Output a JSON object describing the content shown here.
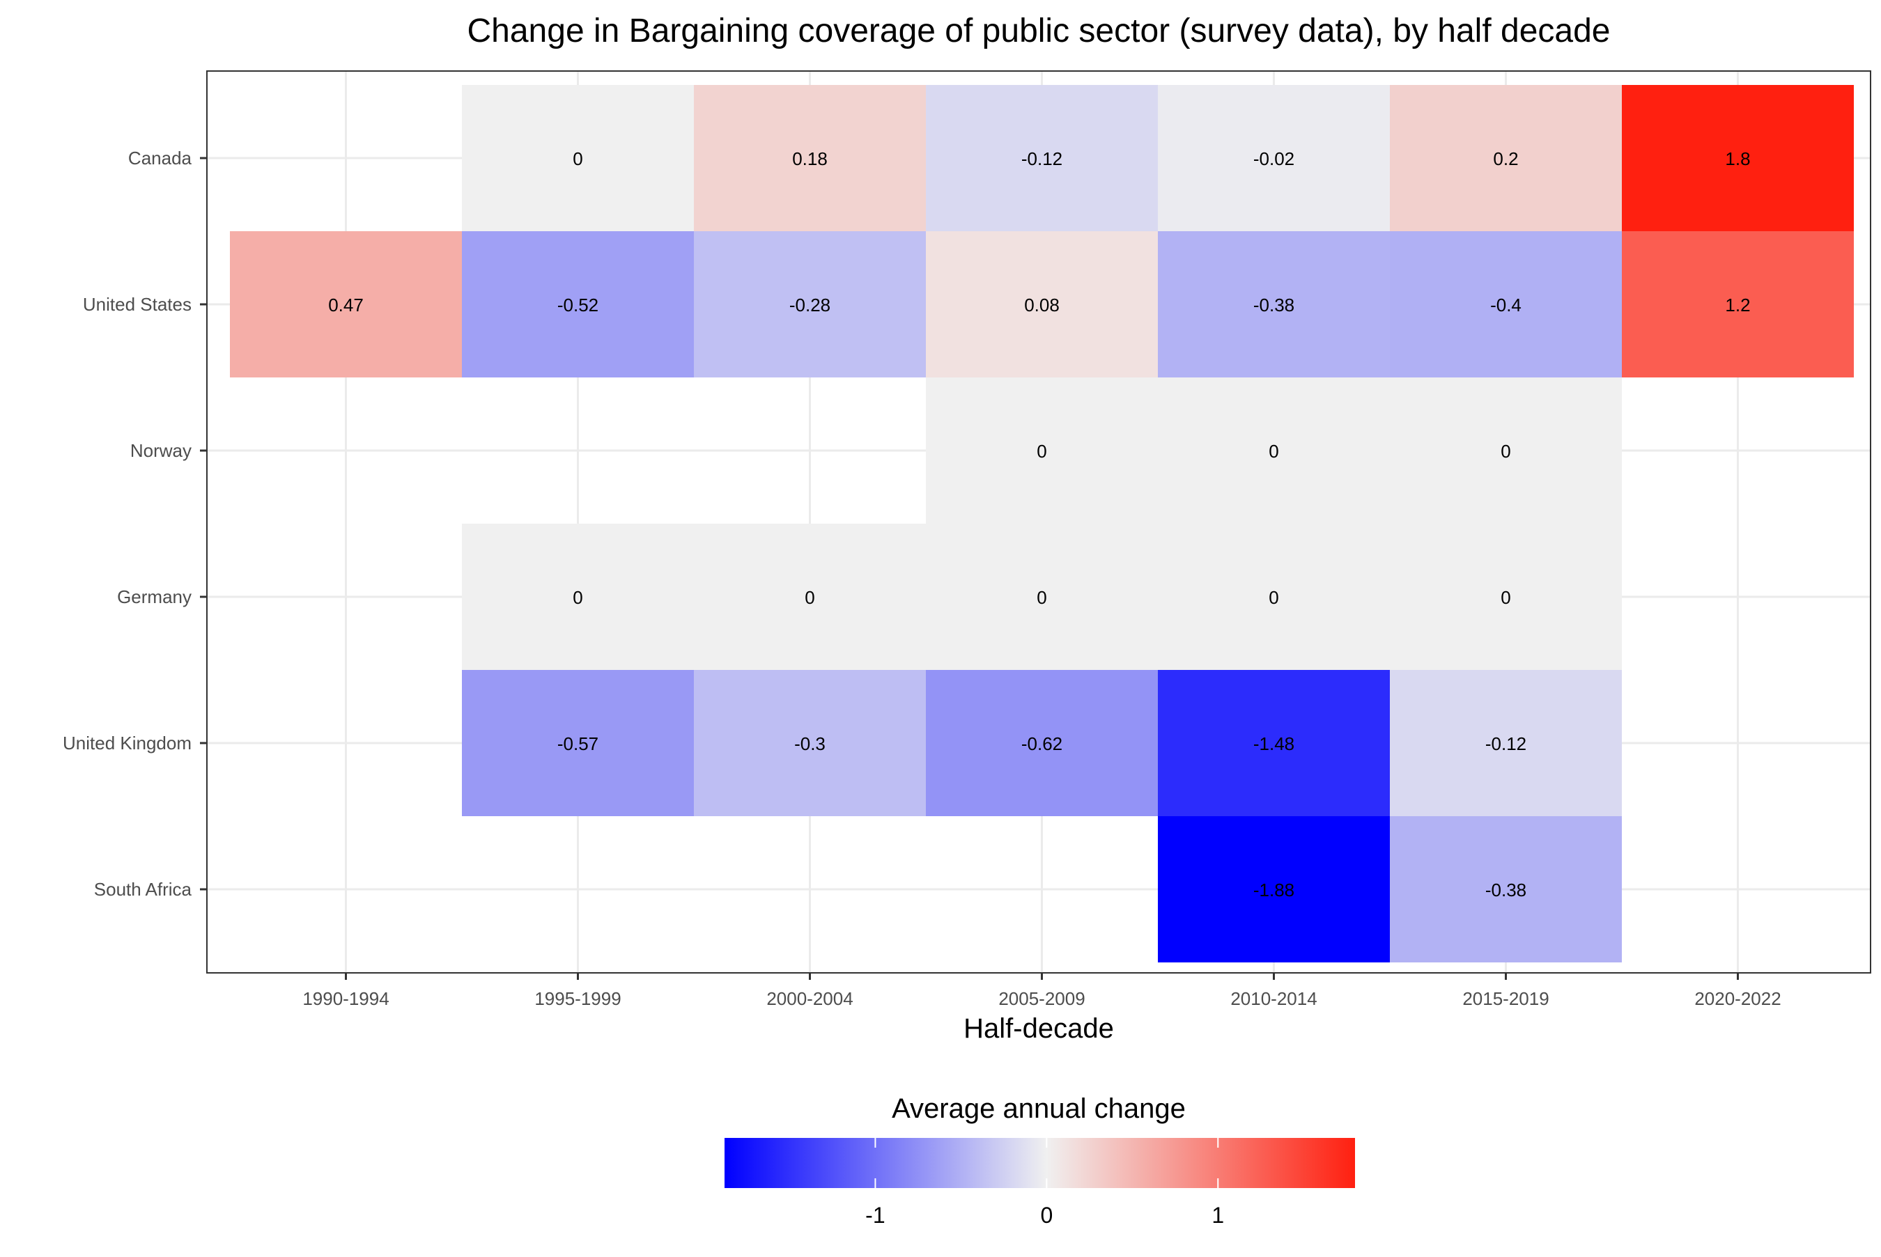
{
  "chart_data": {
    "type": "heatmap",
    "title": "Change in Bargaining coverage of public sector (survey data), by half decade",
    "xlabel": "Half-decade",
    "ylabel": "",
    "x_categories": [
      "1990-1994",
      "1995-1999",
      "2000-2004",
      "2005-2009",
      "2010-2014",
      "2015-2019",
      "2020-2022"
    ],
    "y_categories": [
      "Canada",
      "United States",
      "Norway",
      "Germany",
      "United Kingdom",
      "South Africa"
    ],
    "cells": [
      {
        "country": "Canada",
        "period": "1995-1999",
        "value": 0,
        "label": "0"
      },
      {
        "country": "Canada",
        "period": "2000-2004",
        "value": 0.18,
        "label": "0.18"
      },
      {
        "country": "Canada",
        "period": "2005-2009",
        "value": -0.12,
        "label": "-0.12"
      },
      {
        "country": "Canada",
        "period": "2010-2014",
        "value": -0.02,
        "label": "-0.02"
      },
      {
        "country": "Canada",
        "period": "2015-2019",
        "value": 0.2,
        "label": "0.2"
      },
      {
        "country": "Canada",
        "period": "2020-2022",
        "value": 1.8,
        "label": "1.8"
      },
      {
        "country": "United States",
        "period": "1990-1994",
        "value": 0.47,
        "label": "0.47"
      },
      {
        "country": "United States",
        "period": "1995-1999",
        "value": -0.52,
        "label": "-0.52"
      },
      {
        "country": "United States",
        "period": "2000-2004",
        "value": -0.28,
        "label": "-0.28"
      },
      {
        "country": "United States",
        "period": "2005-2009",
        "value": 0.08,
        "label": "0.08"
      },
      {
        "country": "United States",
        "period": "2010-2014",
        "value": -0.38,
        "label": "-0.38"
      },
      {
        "country": "United States",
        "period": "2015-2019",
        "value": -0.4,
        "label": "-0.4"
      },
      {
        "country": "United States",
        "period": "2020-2022",
        "value": 1.2,
        "label": "1.2"
      },
      {
        "country": "Norway",
        "period": "2005-2009",
        "value": 0,
        "label": "0"
      },
      {
        "country": "Norway",
        "period": "2010-2014",
        "value": 0,
        "label": "0"
      },
      {
        "country": "Norway",
        "period": "2015-2019",
        "value": 0,
        "label": "0"
      },
      {
        "country": "Germany",
        "period": "1995-1999",
        "value": 0,
        "label": "0"
      },
      {
        "country": "Germany",
        "period": "2000-2004",
        "value": 0,
        "label": "0"
      },
      {
        "country": "Germany",
        "period": "2005-2009",
        "value": 0,
        "label": "0"
      },
      {
        "country": "Germany",
        "period": "2010-2014",
        "value": 0,
        "label": "0"
      },
      {
        "country": "Germany",
        "period": "2015-2019",
        "value": 0,
        "label": "0"
      },
      {
        "country": "United Kingdom",
        "period": "1995-1999",
        "value": -0.57,
        "label": "-0.57"
      },
      {
        "country": "United Kingdom",
        "period": "2000-2004",
        "value": -0.3,
        "label": "-0.3"
      },
      {
        "country": "United Kingdom",
        "period": "2005-2009",
        "value": -0.62,
        "label": "-0.62"
      },
      {
        "country": "United Kingdom",
        "period": "2010-2014",
        "value": -1.48,
        "label": "-1.48"
      },
      {
        "country": "United Kingdom",
        "period": "2015-2019",
        "value": -0.12,
        "label": "-0.12"
      },
      {
        "country": "South Africa",
        "period": "2010-2014",
        "value": -1.88,
        "label": "-1.88"
      },
      {
        "country": "South Africa",
        "period": "2015-2019",
        "value": -0.38,
        "label": "-0.38"
      }
    ],
    "legend": {
      "title": "Average annual change",
      "position": "bottom",
      "range": [
        -1.88,
        1.8
      ],
      "ticks": [
        -1,
        0,
        1
      ],
      "tick_labels": [
        "-1",
        "0",
        "1"
      ],
      "low_color": "#0000ff",
      "mid_color": "#f0f0f0",
      "high_color": "#ff2010"
    },
    "grid": true
  }
}
